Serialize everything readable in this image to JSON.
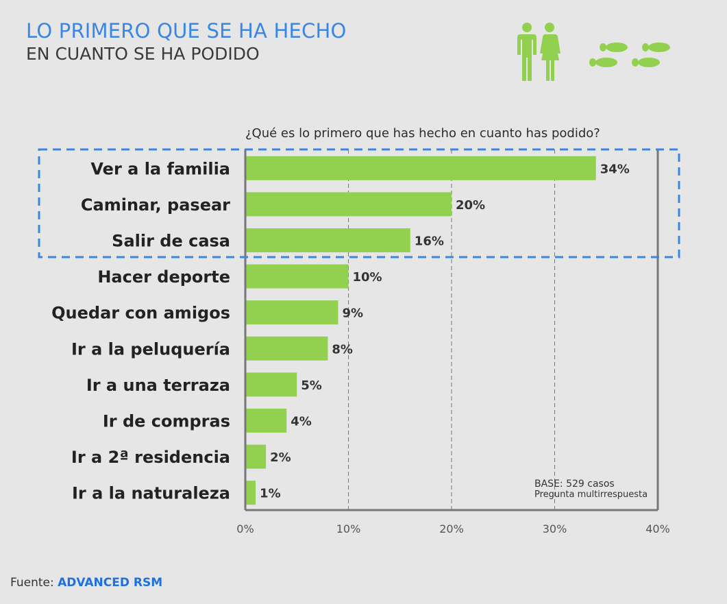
{
  "header": {
    "title": "LO PRIMERO QUE SE HA HECHO",
    "subtitle": "EN CUANTO SE HA PODIDO"
  },
  "icons": [
    "couple-icon",
    "footprints-icon"
  ],
  "colors": {
    "bar": "#92d050",
    "title": "#3a86e4",
    "highlight_box": "#3a86e4",
    "icon": "#92d050",
    "brand": "#1f6fe0"
  },
  "chart_data": {
    "type": "bar",
    "orientation": "horizontal",
    "title": "¿Qué es lo primero que has hecho en cuanto has podido?",
    "categories": [
      "Ver a la familia",
      "Caminar, pasear",
      "Salir de casa",
      "Hacer deporte",
      "Quedar con amigos",
      "Ir a la peluquería",
      "Ir a una terraza",
      "Ir de compras",
      "Ir a 2ª residencia",
      "Ir a la naturaleza"
    ],
    "values": [
      34,
      20,
      16,
      10,
      9,
      8,
      5,
      4,
      2,
      1
    ],
    "value_labels": [
      "34%",
      "20%",
      "16%",
      "10%",
      "9%",
      "8%",
      "5%",
      "4%",
      "2%",
      "1%"
    ],
    "xlim": [
      0,
      40
    ],
    "xticks": [
      0,
      10,
      20,
      30,
      40
    ],
    "xtick_labels": [
      "0%",
      "10%",
      "20%",
      "30%",
      "40%"
    ],
    "grid": "vertical dashed",
    "highlighted_categories": [
      "Ver a la familia",
      "Caminar, pasear",
      "Salir de casa"
    ]
  },
  "notes": {
    "base": "BASE: 529 casos",
    "multi": "Pregunta multirrespuesta"
  },
  "footer": {
    "label": "Fuente:",
    "source": "ADVANCED RSM"
  }
}
